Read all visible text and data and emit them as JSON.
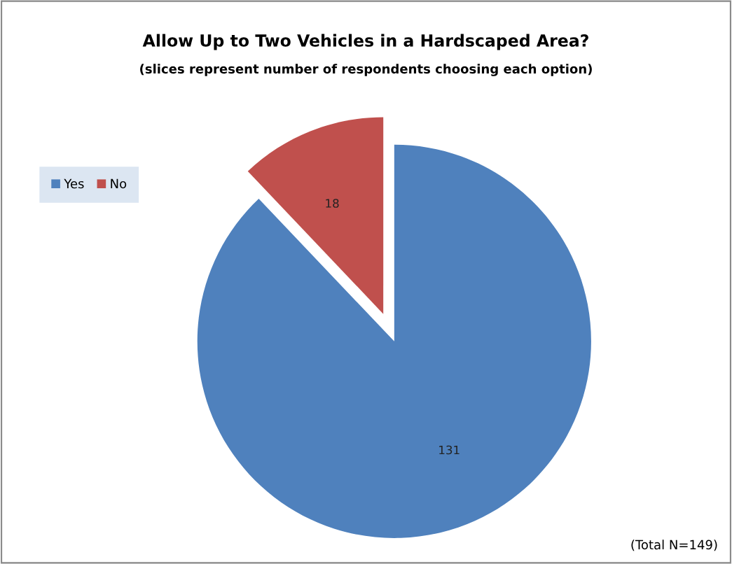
{
  "chart_data": {
    "type": "pie",
    "title": "Allow Up to Two Vehicles in a Hardscaped Area?",
    "subtitle": "(slices represent number of respondents choosing each option)",
    "categories": [
      "Yes",
      "No"
    ],
    "values": [
      131,
      18
    ],
    "colors": [
      "#4f81bd",
      "#c0504d"
    ],
    "data_labels": true,
    "legend": "top left",
    "annotations": [
      "(Total N=149)"
    ]
  }
}
